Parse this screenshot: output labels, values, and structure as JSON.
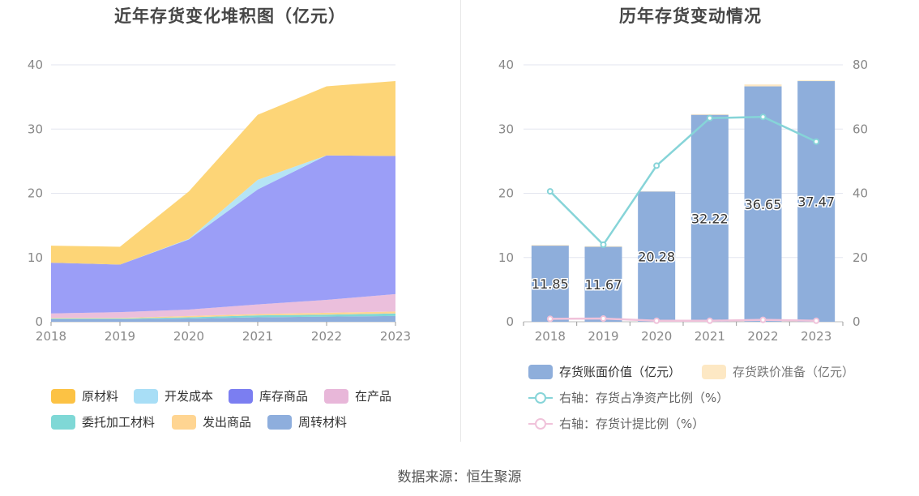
{
  "left_chart": {
    "title": "近年存货变化堆积图（亿元）",
    "chart_data": {
      "type": "area",
      "stacked": true,
      "x": [
        "2018",
        "2019",
        "2020",
        "2021",
        "2022",
        "2023"
      ],
      "ylim": [
        0,
        40
      ],
      "yticks": [
        "0",
        "10",
        "20",
        "30",
        "40"
      ],
      "grid": true,
      "legend_position": "bottom",
      "series": [
        {
          "name": "周转材料",
          "color": "#8eaedd",
          "values": [
            0.4,
            0.4,
            0.5,
            0.7,
            0.8,
            0.9
          ]
        },
        {
          "name": "委托加工材料",
          "color": "#7fd8d6",
          "values": [
            0.1,
            0.1,
            0.2,
            0.3,
            0.3,
            0.4
          ]
        },
        {
          "name": "发出商品",
          "color": "#ffd592",
          "values": [
            0.1,
            0.1,
            0.2,
            0.2,
            0.3,
            0.3
          ]
        },
        {
          "name": "在产品",
          "color": "#ebbfdc",
          "values": [
            0.7,
            0.9,
            1.0,
            1.5,
            2.0,
            2.7
          ]
        },
        {
          "name": "库存商品",
          "color": "#9b9ef7",
          "values": [
            7.9,
            7.4,
            10.9,
            17.9,
            22.5,
            21.5
          ]
        },
        {
          "name": "开发成本",
          "color": "#b5e4f5",
          "values": [
            0.0,
            0.0,
            0.1,
            1.5,
            0.0,
            0.0
          ]
        },
        {
          "name": "原材料",
          "color": "#fdd577",
          "values": [
            2.65,
            2.77,
            7.38,
            10.12,
            10.75,
            11.67
          ]
        }
      ]
    },
    "legend": [
      {
        "name": "原材料",
        "color": "#fcc244"
      },
      {
        "name": "开发成本",
        "color": "#a8def6"
      },
      {
        "name": "库存商品",
        "color": "#7b7ef1"
      },
      {
        "name": "在产品",
        "color": "#e8b7d9"
      },
      {
        "name": "委托加工材料",
        "color": "#7fd8d6"
      },
      {
        "name": "发出商品",
        "color": "#ffd592"
      },
      {
        "name": "周转材料",
        "color": "#8eaedd"
      }
    ]
  },
  "right_chart": {
    "title": "历年存货变动情况",
    "chart_data": {
      "type": "bar",
      "categories": [
        "2018",
        "2019",
        "2020",
        "2021",
        "2022",
        "2023"
      ],
      "ylim": [
        0,
        40
      ],
      "yticks": [
        "0",
        "10",
        "20",
        "30",
        "40"
      ],
      "y2lim": [
        0,
        80
      ],
      "y2ticks": [
        "0",
        "20",
        "40",
        "60",
        "80"
      ],
      "grid": true,
      "legend_position": "bottom",
      "series": [
        {
          "name": "存货账面价值（亿元）",
          "kind": "bar",
          "color": "#8eaedb",
          "values": [
            11.85,
            11.67,
            20.28,
            32.22,
            36.65,
            37.47
          ],
          "labels": [
            "11.85",
            "11.67",
            "20.28",
            "32.22",
            "36.65",
            "37.47"
          ]
        },
        {
          "name": "存货跌价准备（亿元）",
          "kind": "bar",
          "color": "#fde8c4",
          "values": [
            0.1,
            0.1,
            0.05,
            0.1,
            0.3,
            0.1
          ]
        },
        {
          "name": "右轴：存货占净资产比例（%）",
          "kind": "line",
          "axis": "right",
          "color": "#86d4d8",
          "values": [
            40.6,
            24.0,
            48.6,
            63.4,
            63.8,
            56.1
          ]
        },
        {
          "name": "右轴：存货计提比例（%）",
          "kind": "line",
          "axis": "right",
          "color": "#f0c2da",
          "values": [
            0.9,
            1.0,
            0.3,
            0.3,
            0.6,
            0.3
          ]
        }
      ]
    }
  },
  "source": "数据来源：恒生聚源"
}
